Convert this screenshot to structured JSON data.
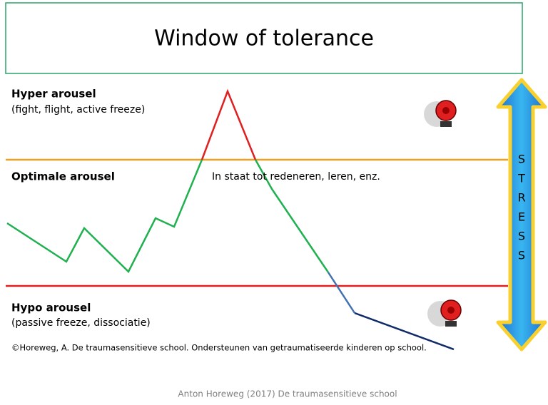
{
  "header": {
    "title": "Window of tolerance"
  },
  "zones": [
    {
      "label": "Hyper arousel",
      "description": "(fight, flight, active freeze)"
    },
    {
      "label": "Optimale arousel",
      "description": "In staat tot redeneren, leren, enz."
    },
    {
      "label": "Hypo arousel",
      "description": "(passive freeze, dissociatie)"
    }
  ],
  "stress_letters": [
    "S",
    "T",
    "R",
    "E",
    "S",
    "S"
  ],
  "citation": "©Horeweg, A. De traumasensitieve school. Ondersteunen van getraumatiseerde kinderen op school.",
  "footer": "Anton Horeweg (2017) De traumasensitieve school"
}
